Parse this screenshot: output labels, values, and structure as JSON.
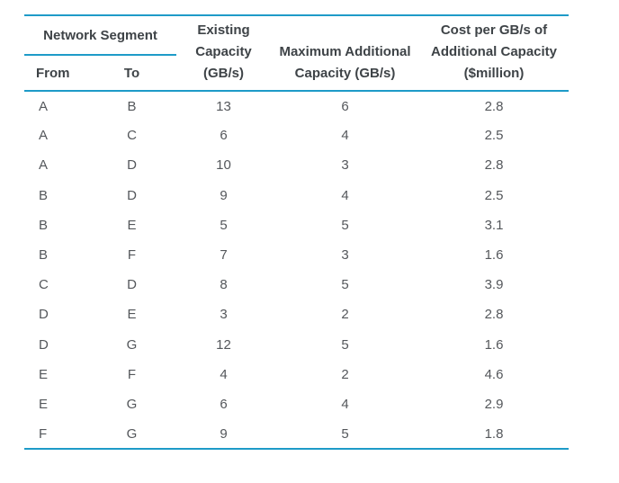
{
  "page": {
    "background": "#ffffff"
  },
  "colors": {
    "accent_rule": "#1e9bc8",
    "header_text": "#3e4347",
    "body_text": "#54575b"
  },
  "header": {
    "network_segment": "Network Segment",
    "from": "From",
    "to": "To",
    "existing_capacity": "Existing\nCapacity\n(GB/s)",
    "maximum_additional": "Maximum Additional\nCapacity (GB/s)",
    "cost_per_gb": "Cost per GB/s of\nAdditional Capacity\n($million)"
  },
  "chart_data": {
    "type": "table",
    "columns": [
      "From",
      "To",
      "Existing Capacity (GB/s)",
      "Maximum Additional Capacity (GB/s)",
      "Cost per GB/s of Additional Capacity ($million)"
    ],
    "rows": [
      [
        "A",
        "B",
        13,
        6,
        2.8
      ],
      [
        "A",
        "C",
        6,
        4,
        2.5
      ],
      [
        "A",
        "D",
        10,
        3,
        2.8
      ],
      [
        "B",
        "D",
        9,
        4,
        2.5
      ],
      [
        "B",
        "E",
        5,
        5,
        3.1
      ],
      [
        "B",
        "F",
        7,
        3,
        1.6
      ],
      [
        "C",
        "D",
        8,
        5,
        3.9
      ],
      [
        "D",
        "E",
        3,
        2,
        2.8
      ],
      [
        "D",
        "G",
        12,
        5,
        1.6
      ],
      [
        "E",
        "F",
        4,
        2,
        4.6
      ],
      [
        "E",
        "G",
        6,
        4,
        2.9
      ],
      [
        "F",
        "G",
        9,
        5,
        1.8
      ]
    ]
  }
}
